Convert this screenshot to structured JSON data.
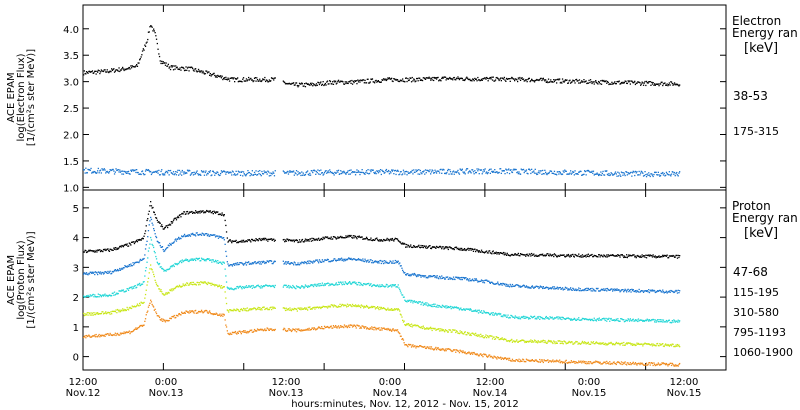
{
  "chart_data": [
    {
      "type": "scatter",
      "panel": "electron",
      "ylabel_lines": [
        "ACE EPAM",
        "log(Electron Flux)",
        "[1/(cm²s ster MeV)]"
      ],
      "yticks": [
        "1.0",
        "1.5",
        "2.0",
        "2.5",
        "3.0",
        "3.5",
        "4.0"
      ],
      "ylim": [
        0.95,
        4.45
      ],
      "legend_title_lines": [
        "Electron",
        "Energy ran"
      ],
      "legend_unit": "[keV]",
      "x_hours": [
        0,
        12,
        24,
        36,
        48,
        60,
        72,
        84,
        96
      ],
      "series": [
        {
          "name": "38-53",
          "color": "#000000",
          "base": 3.05,
          "points": [
            [
              0,
              3.18
            ],
            [
              3,
              3.2
            ],
            [
              6,
              3.25
            ],
            [
              8,
              3.3
            ],
            [
              9.5,
              3.8
            ],
            [
              10,
              4.1
            ],
            [
              10.7,
              3.9
            ],
            [
              11.5,
              3.4
            ],
            [
              13,
              3.28
            ],
            [
              16,
              3.25
            ],
            [
              19,
              3.15
            ],
            [
              22,
              3.05
            ],
            [
              24,
              3.05
            ],
            [
              27,
              3.05
            ],
            [
              28.5,
              3.05
            ],
            [
              31,
              2.95
            ],
            [
              34,
              2.95
            ],
            [
              37,
              3.0
            ],
            [
              40,
              3.0
            ],
            [
              46,
              3.05
            ],
            [
              50,
              3.05
            ],
            [
              54,
              3.07
            ],
            [
              60,
              3.06
            ],
            [
              66,
              3.05
            ],
            [
              72,
              3.02
            ],
            [
              78,
              3.0
            ],
            [
              84,
              2.98
            ],
            [
              89,
              2.97
            ]
          ]
        },
        {
          "name": "175-315",
          "color": "#1a75cf",
          "base": 1.3,
          "points": [
            [
              0,
              1.33
            ],
            [
              10,
              1.3
            ],
            [
              20,
              1.28
            ],
            [
              30,
              1.28
            ],
            [
              40,
              1.3
            ],
            [
              50,
              1.3
            ],
            [
              60,
              1.32
            ],
            [
              70,
              1.3
            ],
            [
              80,
              1.27
            ],
            [
              89,
              1.26
            ]
          ]
        }
      ]
    },
    {
      "type": "scatter",
      "panel": "proton",
      "ylabel_lines": [
        "ACE EPAM",
        "log(Proton Flux)",
        "[1/(cm²s ster MeV)]"
      ],
      "yticks": [
        "0",
        "1",
        "2",
        "3",
        "4",
        "5"
      ],
      "ylim": [
        -0.45,
        5.6
      ],
      "legend_title_lines": [
        "Proton",
        "Energy ran"
      ],
      "legend_unit": "[keV]",
      "x_hours": [
        0,
        12,
        24,
        36,
        48,
        60,
        72,
        84,
        96
      ],
      "series": [
        {
          "name": "47-68",
          "color": "#000000",
          "points": [
            [
              0,
              3.55
            ],
            [
              4,
              3.6
            ],
            [
              7,
              3.8
            ],
            [
              9,
              4.0
            ],
            [
              10,
              5.2
            ],
            [
              11,
              4.6
            ],
            [
              12,
              4.3
            ],
            [
              13.5,
              4.6
            ],
            [
              15,
              4.85
            ],
            [
              18,
              4.9
            ],
            [
              20,
              4.85
            ],
            [
              21,
              4.8
            ],
            [
              21.5,
              3.9
            ],
            [
              24,
              3.9
            ],
            [
              26,
              3.95
            ],
            [
              28.5,
              3.95
            ],
            [
              32,
              3.9
            ],
            [
              36,
              4.0
            ],
            [
              40,
              4.05
            ],
            [
              44,
              3.95
            ],
            [
              47,
              3.95
            ],
            [
              48,
              3.75
            ],
            [
              52,
              3.7
            ],
            [
              56,
              3.65
            ],
            [
              60,
              3.55
            ],
            [
              64,
              3.45
            ],
            [
              72,
              3.42
            ],
            [
              80,
              3.4
            ],
            [
              89,
              3.38
            ]
          ]
        },
        {
          "name": "115-195",
          "color": "#1a75cf",
          "points": [
            [
              0,
              2.8
            ],
            [
              4,
              2.85
            ],
            [
              7,
              3.1
            ],
            [
              9,
              3.3
            ],
            [
              10,
              4.7
            ],
            [
              11,
              3.9
            ],
            [
              12,
              3.6
            ],
            [
              13.5,
              3.9
            ],
            [
              15,
              4.1
            ],
            [
              18,
              4.15
            ],
            [
              20,
              4.05
            ],
            [
              21,
              4.0
            ],
            [
              21.5,
              3.1
            ],
            [
              24,
              3.15
            ],
            [
              28,
              3.2
            ],
            [
              32,
              3.15
            ],
            [
              36,
              3.25
            ],
            [
              40,
              3.3
            ],
            [
              44,
              3.2
            ],
            [
              47,
              3.2
            ],
            [
              48,
              2.8
            ],
            [
              52,
              2.7
            ],
            [
              56,
              2.65
            ],
            [
              60,
              2.55
            ],
            [
              64,
              2.4
            ],
            [
              72,
              2.3
            ],
            [
              80,
              2.25
            ],
            [
              89,
              2.2
            ]
          ]
        },
        {
          "name": "310-580",
          "color": "#22d6d6",
          "points": [
            [
              0,
              2.05
            ],
            [
              4,
              2.1
            ],
            [
              7,
              2.3
            ],
            [
              9,
              2.5
            ],
            [
              10,
              4.0
            ],
            [
              11,
              3.2
            ],
            [
              12,
              2.9
            ],
            [
              13.5,
              3.1
            ],
            [
              15,
              3.25
            ],
            [
              18,
              3.3
            ],
            [
              20,
              3.2
            ],
            [
              21,
              3.15
            ],
            [
              21.5,
              2.3
            ],
            [
              24,
              2.35
            ],
            [
              28,
              2.4
            ],
            [
              32,
              2.35
            ],
            [
              36,
              2.45
            ],
            [
              40,
              2.5
            ],
            [
              44,
              2.4
            ],
            [
              47,
              2.4
            ],
            [
              48,
              1.9
            ],
            [
              52,
              1.75
            ],
            [
              56,
              1.65
            ],
            [
              60,
              1.5
            ],
            [
              64,
              1.35
            ],
            [
              72,
              1.3
            ],
            [
              80,
              1.25
            ],
            [
              89,
              1.2
            ]
          ]
        },
        {
          "name": "795-1193",
          "color": "#c8e617",
          "points": [
            [
              0,
              1.45
            ],
            [
              4,
              1.5
            ],
            [
              7,
              1.65
            ],
            [
              9,
              1.85
            ],
            [
              10,
              3.1
            ],
            [
              11,
              2.4
            ],
            [
              12,
              2.1
            ],
            [
              13.5,
              2.3
            ],
            [
              15,
              2.45
            ],
            [
              18,
              2.5
            ],
            [
              20,
              2.4
            ],
            [
              21,
              2.35
            ],
            [
              21.5,
              1.55
            ],
            [
              24,
              1.6
            ],
            [
              28,
              1.65
            ],
            [
              32,
              1.6
            ],
            [
              36,
              1.7
            ],
            [
              40,
              1.75
            ],
            [
              44,
              1.65
            ],
            [
              47,
              1.6
            ],
            [
              48,
              1.1
            ],
            [
              52,
              0.95
            ],
            [
              56,
              0.85
            ],
            [
              60,
              0.7
            ],
            [
              64,
              0.55
            ],
            [
              72,
              0.5
            ],
            [
              80,
              0.45
            ],
            [
              89,
              0.4
            ]
          ]
        },
        {
          "name": "1060-1900",
          "color": "#f08a1c",
          "points": [
            [
              0,
              0.7
            ],
            [
              4,
              0.75
            ],
            [
              7,
              0.85
            ],
            [
              9,
              1.1
            ],
            [
              10,
              1.9
            ],
            [
              11,
              1.4
            ],
            [
              12,
              1.2
            ],
            [
              13.5,
              1.35
            ],
            [
              15,
              1.5
            ],
            [
              18,
              1.55
            ],
            [
              20,
              1.45
            ],
            [
              21,
              1.4
            ],
            [
              21.5,
              0.8
            ],
            [
              24,
              0.85
            ],
            [
              28,
              0.95
            ],
            [
              32,
              0.9
            ],
            [
              36,
              1.0
            ],
            [
              40,
              1.05
            ],
            [
              44,
              0.95
            ],
            [
              47,
              0.9
            ],
            [
              48,
              0.4
            ],
            [
              52,
              0.3
            ],
            [
              56,
              0.2
            ],
            [
              60,
              0.05
            ],
            [
              64,
              -0.1
            ],
            [
              72,
              -0.15
            ],
            [
              80,
              -0.2
            ],
            [
              89,
              -0.25
            ]
          ]
        }
      ]
    }
  ],
  "x_tick_labels": [
    {
      "time": "12:00",
      "date": "Nov.12"
    },
    {
      "time": "0:00",
      "date": "Nov.13"
    },
    {
      "time": "12:00",
      "date": "Nov.13"
    },
    {
      "time": "0:00",
      "date": "Nov.14"
    },
    {
      "time": "12:00",
      "date": "Nov.14"
    },
    {
      "time": "0:00",
      "date": "Nov.15"
    },
    {
      "time": "12:00",
      "date": "Nov.15"
    }
  ],
  "xlabel": "hours:minutes, Nov. 12, 2012 - Nov. 15, 2012"
}
